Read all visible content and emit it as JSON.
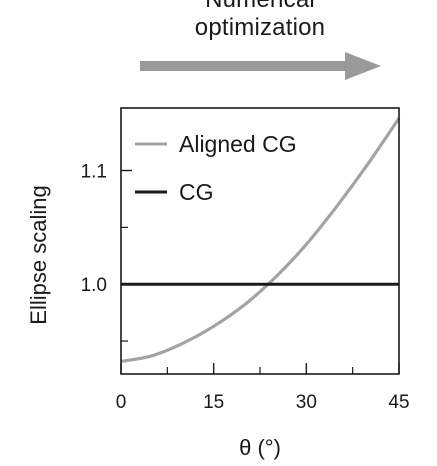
{
  "header": {
    "line1": "Numerical",
    "line2": "optimization"
  },
  "colors": {
    "arrow": "#9a9a9a",
    "aligned_cg": "#a3a3a3",
    "cg": "#1a1a1a",
    "axis": "#1a1a1a"
  },
  "chart_data": {
    "type": "line",
    "xlabel": "θ (°)",
    "ylabel": "Ellipse scaling",
    "xlim": [
      0,
      45
    ],
    "ylim": [
      0.921,
      1.155
    ],
    "x_ticks": [
      0,
      15,
      30,
      45
    ],
    "x_tick_labels": [
      "0",
      "15",
      "30",
      "45"
    ],
    "x_minor_ticks": [
      7.5,
      22.5,
      37.5
    ],
    "y_ticks": [
      1.0,
      1.1
    ],
    "y_tick_labels": [
      "1.0",
      "1.1"
    ],
    "y_minor_ticks": [
      0.95,
      1.05
    ],
    "legend_position": "top-left",
    "series": [
      {
        "name": "Aligned CG",
        "color": "#a3a3a3",
        "x": [
          0,
          5,
          10,
          15,
          20,
          25,
          30,
          35,
          40,
          45
        ],
        "y": [
          0.932,
          0.937,
          0.948,
          0.963,
          0.982,
          1.006,
          1.035,
          1.069,
          1.106,
          1.146
        ]
      },
      {
        "name": "CG",
        "color": "#1a1a1a",
        "x": [
          0,
          45
        ],
        "y": [
          1.0,
          1.0
        ]
      }
    ]
  }
}
